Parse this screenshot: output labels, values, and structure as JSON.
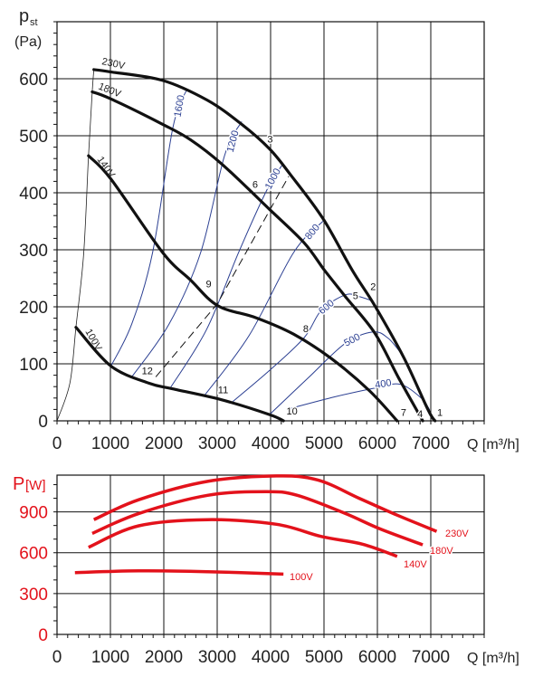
{
  "chart_data": [
    {
      "type": "line",
      "title": "",
      "ylabel": "p",
      "ylabel_sub": "st",
      "ylabel_unit": "(Pa)",
      "xlabel": "Q [m³/h]",
      "xlim": [
        0,
        8000
      ],
      "ylim": [
        0,
        700
      ],
      "xticks": [
        0,
        1000,
        2000,
        3000,
        4000,
        5000,
        6000,
        7000
      ],
      "yticks": [
        0,
        100,
        200,
        300,
        400,
        500,
        600
      ],
      "grid": true,
      "colors": {
        "series": "#111111",
        "rpm": "#2b3f92"
      },
      "series": [
        {
          "name": "230V",
          "points": [
            [
              690,
              616
            ],
            [
              1000,
              612
            ],
            [
              1980,
              597
            ],
            [
              2820,
              562
            ],
            [
              3460,
              520
            ],
            [
              3980,
              477
            ],
            [
              4370,
              432
            ],
            [
              4980,
              355
            ],
            [
              5530,
              264
            ],
            [
              5950,
              202
            ],
            [
              6500,
              110
            ],
            [
              6950,
              19
            ],
            [
              7080,
              0
            ]
          ]
        },
        {
          "name": "180V",
          "points": [
            [
              660,
              577
            ],
            [
              1000,
              565
            ],
            [
              1980,
              520
            ],
            [
              2500,
              493
            ],
            [
              3080,
              451
            ],
            [
              3980,
              371
            ],
            [
              4630,
              312
            ],
            [
              5010,
              264
            ],
            [
              5400,
              218
            ],
            [
              5950,
              154
            ],
            [
              6400,
              75
            ],
            [
              6850,
              0
            ]
          ]
        },
        {
          "name": "140V",
          "points": [
            [
              590,
              465
            ],
            [
              1010,
              424
            ],
            [
              1980,
              295
            ],
            [
              2500,
              247
            ],
            [
              3010,
              202
            ],
            [
              3720,
              181
            ],
            [
              4430,
              152
            ],
            [
              5140,
              109
            ],
            [
              5850,
              53
            ],
            [
              6370,
              0
            ]
          ]
        },
        {
          "name": "100V",
          "points": [
            [
              355,
              164
            ],
            [
              1010,
              96
            ],
            [
              1720,
              66
            ],
            [
              2170,
              56
            ],
            [
              3080,
              37
            ],
            [
              3980,
              11
            ],
            [
              4240,
              0
            ]
          ]
        }
      ],
      "system_curve": [
        [
          0,
          0
        ],
        [
          240,
          66
        ],
        [
          355,
          164
        ],
        [
          500,
          294
        ],
        [
          590,
          465
        ],
        [
          660,
          577
        ],
        [
          690,
          616
        ]
      ],
      "dashed_line": [
        [
          1850,
          77
        ],
        [
          3000,
          205
        ],
        [
          4340,
          429
        ]
      ],
      "rpm_lines": [
        {
          "label": "1600",
          "points": [
            [
              1010,
              96
            ],
            [
              1400,
              170
            ],
            [
              1790,
              295
            ],
            [
              2170,
              514
            ],
            [
              2430,
              581
            ]
          ]
        },
        {
          "label": "1200",
          "points": [
            [
              1400,
              77
            ],
            [
              2100,
              170
            ],
            [
              2690,
              295
            ],
            [
              3140,
              466
            ],
            [
              3460,
              525
            ]
          ]
        },
        {
          "label": "1000",
          "points": [
            [
              2110,
              56
            ],
            [
              2800,
              160
            ],
            [
              3400,
              295
            ],
            [
              3920,
              403
            ],
            [
              4210,
              448
            ]
          ]
        },
        {
          "label": "800",
          "points": [
            [
              2750,
              43
            ],
            [
              3600,
              150
            ],
            [
              4430,
              295
            ],
            [
              4980,
              350
            ]
          ]
        },
        {
          "label": "600",
          "points": [
            [
              3270,
              32
            ],
            [
              4000,
              90
            ],
            [
              4630,
              146
            ],
            [
              4950,
              194
            ],
            [
              5400,
              221
            ],
            [
              5660,
              218
            ],
            [
              5920,
              210
            ]
          ]
        },
        {
          "label": "500",
          "points": [
            [
              3980,
              11
            ],
            [
              4700,
              75
            ],
            [
              5400,
              136
            ],
            [
              5920,
              156
            ],
            [
              6200,
              145
            ],
            [
              6430,
              120
            ]
          ]
        },
        {
          "label": "400",
          "points": [
            [
              4300,
              20
            ],
            [
              5200,
              42
            ],
            [
              5980,
              58
            ],
            [
              6430,
              64
            ],
            [
              6820,
              40
            ],
            [
              6980,
              19
            ]
          ]
        }
      ],
      "operating_points": [
        {
          "label": "1",
          "q": 7170,
          "p": 13
        },
        {
          "label": "2",
          "q": 5920,
          "p": 234
        },
        {
          "label": "3",
          "q": 3990,
          "p": 493
        },
        {
          "label": "4",
          "q": 6800,
          "p": 11
        },
        {
          "label": "5",
          "q": 5590,
          "p": 218
        },
        {
          "label": "6",
          "q": 3710,
          "p": 413
        },
        {
          "label": "7",
          "q": 6490,
          "p": 13
        },
        {
          "label": "8",
          "q": 4660,
          "p": 160
        },
        {
          "label": "9",
          "q": 2840,
          "p": 239
        },
        {
          "label": "10",
          "q": 4400,
          "p": 16
        },
        {
          "label": "11",
          "q": 3110,
          "p": 53
        },
        {
          "label": "12",
          "q": 1690,
          "p": 86
        }
      ]
    },
    {
      "type": "line",
      "title": "",
      "ylabel": "P",
      "ylabel_unit": "[W]",
      "xlabel": "Q [m³/h]",
      "xlim": [
        0,
        8000
      ],
      "ylim": [
        0,
        1170
      ],
      "xticks": [
        0,
        1000,
        2000,
        3000,
        4000,
        5000,
        6000,
        7000
      ],
      "yticks": [
        0,
        300,
        600,
        900
      ],
      "grid": true,
      "colors": {
        "series": "#e3121b",
        "axis_labels": "#e3121b"
      },
      "series": [
        {
          "name": "230V",
          "points": [
            [
              690,
              843
            ],
            [
              1530,
              989
            ],
            [
              2820,
              1124
            ],
            [
              4110,
              1164
            ],
            [
              4880,
              1135
            ],
            [
              5660,
              1000
            ],
            [
              6370,
              876
            ],
            [
              7110,
              757
            ]
          ]
        },
        {
          "name": "180V",
          "points": [
            [
              660,
              742
            ],
            [
              1530,
              888
            ],
            [
              2820,
              1022
            ],
            [
              3920,
              1049
            ],
            [
              4500,
              1022
            ],
            [
              5400,
              888
            ],
            [
              6050,
              775
            ],
            [
              6850,
              658
            ]
          ]
        },
        {
          "name": "140V",
          "points": [
            [
              590,
              640
            ],
            [
              1530,
              798
            ],
            [
              2820,
              843
            ],
            [
              4110,
              809
            ],
            [
              4950,
              719
            ],
            [
              5720,
              663
            ],
            [
              6370,
              573
            ]
          ]
        },
        {
          "name": "100V",
          "points": [
            [
              335,
              454
            ],
            [
              1530,
              467
            ],
            [
              2820,
              461
            ],
            [
              4240,
              443
            ]
          ]
        }
      ]
    }
  ]
}
